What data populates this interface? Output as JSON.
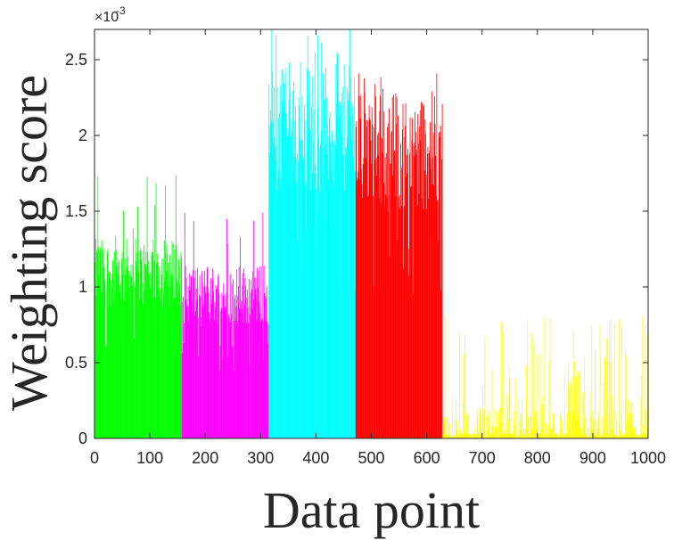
{
  "chart_data": {
    "type": "bar",
    "xlabel": "Data point",
    "ylabel": "Weighting score",
    "y_multiplier_label": "×10",
    "y_multiplier_exponent": "-3",
    "xlim": [
      0,
      1000
    ],
    "ylim": [
      0,
      2.7
    ],
    "y_units": "×10^-3",
    "grid": false,
    "x_ticks": [
      0,
      100,
      200,
      300,
      400,
      500,
      600,
      700,
      800,
      900,
      1000
    ],
    "y_ticks": [
      0,
      0.5,
      1,
      1.5,
      2,
      2.5
    ],
    "x_tick_labels": [
      "0",
      "100",
      "200",
      "300",
      "400",
      "500",
      "600",
      "700",
      "800",
      "900",
      "1000"
    ],
    "y_tick_labels": [
      "0",
      "0.5",
      "1",
      "1.5",
      "2",
      "2.5"
    ],
    "series": [
      {
        "color": "#00ff00",
        "x_range": [
          1,
          157
        ],
        "typical": 1.15,
        "peak": 1.73
      },
      {
        "color": "#ff00ff",
        "x_range": [
          158,
          314
        ],
        "typical": 1.0,
        "peak": 1.49
      },
      {
        "color": "#00ffff",
        "x_range": [
          315,
          471
        ],
        "typical": 2.15,
        "peak": 2.7
      },
      {
        "color": "#ff0000",
        "x_range": [
          472,
          628
        ],
        "typical": 2.0,
        "peak": 2.41
      },
      {
        "color": "#ffff00",
        "x_range": [
          629,
          1000
        ],
        "typical": 0.05,
        "peak": 0.81
      }
    ]
  }
}
